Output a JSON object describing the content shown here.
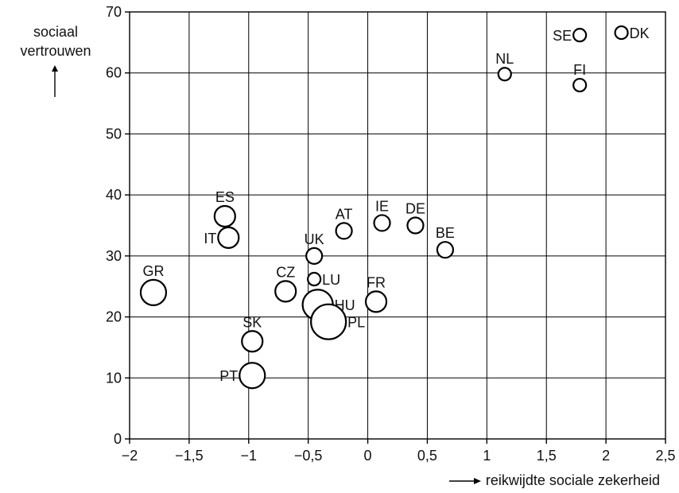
{
  "chart_data": {
    "type": "scatter",
    "xlabel": "reikwijdte sociale zekerheid",
    "ylabel_line1": "sociaal",
    "ylabel_line2": "vertrouwen",
    "xlim": [
      -2,
      2.5
    ],
    "ylim": [
      0,
      70
    ],
    "xticks": [
      -2,
      -1.5,
      -1,
      -0.5,
      0,
      0.5,
      1,
      1.5,
      2,
      2.5
    ],
    "xtick_labels": [
      "−2",
      "−1,5",
      "−1",
      "−0,5",
      "0",
      "0,5",
      "1",
      "1,5",
      "2",
      "2,5"
    ],
    "yticks": [
      0,
      10,
      20,
      30,
      40,
      50,
      60,
      70
    ],
    "ytick_labels": [
      "0",
      "10",
      "20",
      "30",
      "40",
      "50",
      "60",
      "70"
    ],
    "grid": true,
    "points": [
      {
        "label": "GR",
        "x": -1.8,
        "y": 24,
        "size": "large",
        "label_pos": "above"
      },
      {
        "label": "ES",
        "x": -1.2,
        "y": 36.5,
        "size": "medium",
        "label_pos": "above"
      },
      {
        "label": "IT",
        "x": -1.17,
        "y": 33,
        "size": "medium",
        "label_pos": "left"
      },
      {
        "label": "SK",
        "x": -0.97,
        "y": 16,
        "size": "medium",
        "label_pos": "above"
      },
      {
        "label": "PT",
        "x": -0.97,
        "y": 10.4,
        "size": "large",
        "label_pos": "left"
      },
      {
        "label": "CZ",
        "x": -0.69,
        "y": 24.2,
        "size": "medium",
        "label_pos": "above"
      },
      {
        "label": "UK",
        "x": -0.45,
        "y": 30,
        "size": "small",
        "label_pos": "above"
      },
      {
        "label": "LU",
        "x": -0.45,
        "y": 26.2,
        "size": "tiny",
        "label_pos": "right"
      },
      {
        "label": "HU",
        "x": -0.42,
        "y": 22,
        "size": "xlarge",
        "label_pos": "right"
      },
      {
        "label": "PL",
        "x": -0.33,
        "y": 19.2,
        "size": "xxlarge",
        "label_pos": "right"
      },
      {
        "label": "AT",
        "x": -0.2,
        "y": 34.1,
        "size": "small",
        "label_pos": "above"
      },
      {
        "label": "IE",
        "x": 0.12,
        "y": 35.4,
        "size": "small",
        "label_pos": "above"
      },
      {
        "label": "FR",
        "x": 0.07,
        "y": 22.5,
        "size": "medium",
        "label_pos": "above"
      },
      {
        "label": "DE",
        "x": 0.4,
        "y": 35,
        "size": "small",
        "label_pos": "above"
      },
      {
        "label": "BE",
        "x": 0.65,
        "y": 31,
        "size": "small",
        "label_pos": "above"
      },
      {
        "label": "NL",
        "x": 1.15,
        "y": 59.8,
        "size": "tiny",
        "label_pos": "above"
      },
      {
        "label": "SE",
        "x": 1.78,
        "y": 66.2,
        "size": "tiny",
        "label_pos": "left"
      },
      {
        "label": "FI",
        "x": 1.78,
        "y": 58,
        "size": "tiny",
        "label_pos": "above"
      },
      {
        "label": "DK",
        "x": 2.13,
        "y": 66.6,
        "size": "tiny",
        "label_pos": "right"
      }
    ]
  }
}
